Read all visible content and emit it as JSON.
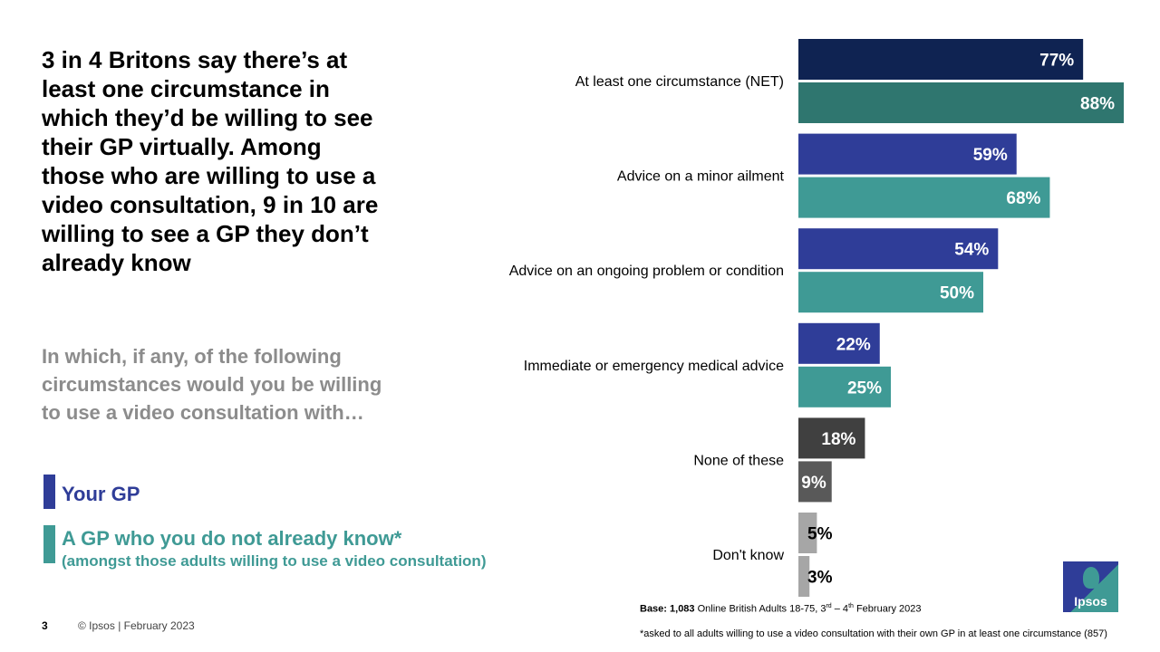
{
  "headline": "3 in 4 Britons say there’s at least one circumstance in which they’d be willing to see their GP virtually. Among those who are willing to use a video consultation, 9 in 10 are willing to see a GP they don’t already know",
  "question": "In which, if any, of the following circumstances would you be willing to use a video consultation with…",
  "legend": {
    "your_gp": "Your GP",
    "new_gp": "A GP who you do not already know*",
    "new_gp_sub": "(amongst those adults willing to use a video consultation)"
  },
  "footer": {
    "page_number": "3",
    "copyright": "© Ipsos | February 2023",
    "base_bold": "Base: 1,083",
    "base_rest_1": " Online British Adults 18-75, 3",
    "base_sup_1": "rd",
    "base_rest_2": " – 4",
    "base_sup_2": "th",
    "base_rest_3": " February 2023",
    "asterisk_note": "*asked to all adults willing to use a video consultation with their own GP in at least one circumstance (857)",
    "logo_text": "Ipsos"
  },
  "colors": {
    "your_gp": "#2f3d98",
    "new_gp": "#3f9a95",
    "net_your_gp": "#0f2352",
    "net_new_gp": "#2f766f",
    "none_your_gp": "#404040",
    "none_new_gp": "#595959",
    "dontknow": "#a6a6a6"
  },
  "chart_data": {
    "type": "bar",
    "orientation": "horizontal",
    "categories": [
      "At least one circumstance (NET)",
      "Advice on a minor ailment",
      "Advice on an ongoing problem or condition",
      "Immediate or emergency medical advice",
      "None of these",
      "Don't know"
    ],
    "series": [
      {
        "name": "Your GP",
        "values": [
          77,
          59,
          54,
          22,
          18,
          5
        ]
      },
      {
        "name": "A GP who you do not already know*",
        "values": [
          88,
          68,
          50,
          25,
          9,
          3
        ]
      }
    ],
    "value_labels": [
      [
        "77%",
        "59%",
        "54%",
        "22%",
        "18%",
        "5%"
      ],
      [
        "88%",
        "68%",
        "50%",
        "25%",
        "9%",
        "3%"
      ]
    ],
    "unit": "%",
    "xlim": [
      0,
      100
    ],
    "grid": false
  }
}
